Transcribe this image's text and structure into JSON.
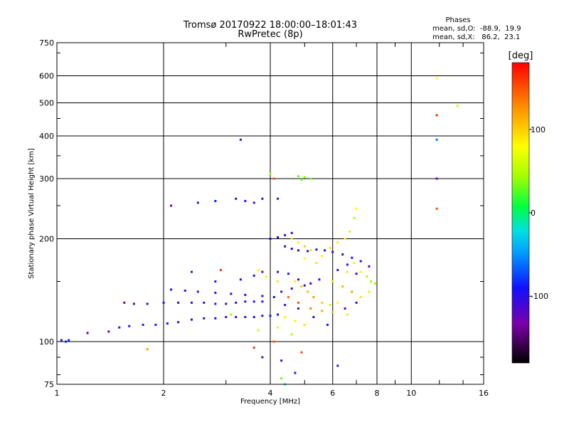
{
  "chart_data": {
    "type": "scatter",
    "title": "Tromsø 20170922 18:00:00–18:01:43",
    "subtitle": "RwPretec (8p)",
    "xlabel": "Frequency [MHz]",
    "ylabel": "Stationary phase Virtual Height [km]",
    "x_scale": "log",
    "y_scale": "log",
    "xlim": [
      1,
      16
    ],
    "ylim": [
      75,
      750
    ],
    "x_ticks": [
      1,
      2,
      4,
      6,
      8,
      10,
      16
    ],
    "x_tick_labels": [
      "1",
      "2",
      "4",
      "6",
      "8",
      "10",
      "16"
    ],
    "y_ticks": [
      75,
      100,
      200,
      300,
      400,
      500,
      600,
      750
    ],
    "y_tick_labels": [
      "75",
      "100",
      "200",
      "300",
      "400",
      "500",
      "600",
      "750"
    ],
    "grid": true,
    "phases_header": "Phases",
    "phase_stats": [
      "mean, sd,O:  -88.9,  19.9",
      "mean, sd,X:   86.2,  23.1"
    ],
    "colorbar": {
      "label": "[deg]",
      "min": -180,
      "max": 180,
      "ticks": [
        100,
        0,
        -100
      ],
      "tick_labels": [
        "100",
        "0",
        "-100"
      ]
    },
    "series": [
      {
        "values": [
          {
            "x": 1.03,
            "y": 101,
            "phase": -110
          },
          {
            "x": 1.06,
            "y": 100,
            "phase": -90
          },
          {
            "x": 1.08,
            "y": 101,
            "phase": -80
          },
          {
            "x": 1.22,
            "y": 106,
            "phase": -120
          },
          {
            "x": 1.4,
            "y": 107,
            "phase": -115
          },
          {
            "x": 1.5,
            "y": 110,
            "phase": -110
          },
          {
            "x": 1.6,
            "y": 111,
            "phase": -105
          },
          {
            "x": 1.75,
            "y": 112,
            "phase": -110
          },
          {
            "x": 1.9,
            "y": 112,
            "phase": -105
          },
          {
            "x": 2.05,
            "y": 113,
            "phase": -100
          },
          {
            "x": 2.2,
            "y": 114,
            "phase": -95
          },
          {
            "x": 2.4,
            "y": 116,
            "phase": -100
          },
          {
            "x": 2.6,
            "y": 117,
            "phase": -95
          },
          {
            "x": 2.8,
            "y": 117,
            "phase": -100
          },
          {
            "x": 3.0,
            "y": 118,
            "phase": -105
          },
          {
            "x": 3.2,
            "y": 118,
            "phase": -100
          },
          {
            "x": 3.4,
            "y": 118,
            "phase": -110
          },
          {
            "x": 3.6,
            "y": 118,
            "phase": -100
          },
          {
            "x": 3.8,
            "y": 119,
            "phase": -95
          },
          {
            "x": 4.0,
            "y": 119,
            "phase": -90
          },
          {
            "x": 4.2,
            "y": 120,
            "phase": -100
          },
          {
            "x": 1.55,
            "y": 130,
            "phase": -115
          },
          {
            "x": 1.65,
            "y": 129,
            "phase": -120
          },
          {
            "x": 1.8,
            "y": 129,
            "phase": -110
          },
          {
            "x": 2.0,
            "y": 130,
            "phase": -105
          },
          {
            "x": 2.2,
            "y": 130,
            "phase": -100
          },
          {
            "x": 2.4,
            "y": 130,
            "phase": -105
          },
          {
            "x": 2.6,
            "y": 130,
            "phase": -100
          },
          {
            "x": 2.8,
            "y": 129,
            "phase": -110
          },
          {
            "x": 3.0,
            "y": 129,
            "phase": -105
          },
          {
            "x": 3.2,
            "y": 130,
            "phase": -100
          },
          {
            "x": 3.4,
            "y": 131,
            "phase": -110
          },
          {
            "x": 3.6,
            "y": 131,
            "phase": -105
          },
          {
            "x": 3.8,
            "y": 131,
            "phase": -95
          },
          {
            "x": 2.1,
            "y": 142,
            "phase": -100
          },
          {
            "x": 2.3,
            "y": 141,
            "phase": -110
          },
          {
            "x": 2.5,
            "y": 140,
            "phase": -115
          },
          {
            "x": 2.8,
            "y": 139,
            "phase": -105
          },
          {
            "x": 3.1,
            "y": 138,
            "phase": -110
          },
          {
            "x": 3.4,
            "y": 137,
            "phase": -100
          },
          {
            "x": 3.8,
            "y": 136,
            "phase": -95
          },
          {
            "x": 4.1,
            "y": 135,
            "phase": -90
          },
          {
            "x": 2.4,
            "y": 160,
            "phase": -115
          },
          {
            "x": 2.8,
            "y": 150,
            "phase": -110
          },
          {
            "x": 3.3,
            "y": 152,
            "phase": -105
          },
          {
            "x": 3.6,
            "y": 156,
            "phase": -95
          },
          {
            "x": 3.8,
            "y": 160,
            "phase": -100
          },
          {
            "x": 2.1,
            "y": 250,
            "phase": -120
          },
          {
            "x": 2.5,
            "y": 255,
            "phase": -110
          },
          {
            "x": 2.8,
            "y": 258,
            "phase": -90
          },
          {
            "x": 3.2,
            "y": 262,
            "phase": -105
          },
          {
            "x": 3.4,
            "y": 258,
            "phase": -100
          },
          {
            "x": 3.6,
            "y": 255,
            "phase": -110
          },
          {
            "x": 3.8,
            "y": 262,
            "phase": -100
          },
          {
            "x": 4.2,
            "y": 262,
            "phase": -120
          },
          {
            "x": 4.0,
            "y": 200,
            "phase": -105
          },
          {
            "x": 4.2,
            "y": 202,
            "phase": -110
          },
          {
            "x": 4.4,
            "y": 205,
            "phase": -100
          },
          {
            "x": 4.6,
            "y": 208,
            "phase": -105
          },
          {
            "x": 4.4,
            "y": 190,
            "phase": -100
          },
          {
            "x": 4.6,
            "y": 187,
            "phase": -95
          },
          {
            "x": 4.8,
            "y": 185,
            "phase": -90
          },
          {
            "x": 5.1,
            "y": 184,
            "phase": -100
          },
          {
            "x": 5.4,
            "y": 186,
            "phase": -95
          },
          {
            "x": 5.7,
            "y": 185,
            "phase": -90
          },
          {
            "x": 6.0,
            "y": 183,
            "phase": -100
          },
          {
            "x": 6.4,
            "y": 180,
            "phase": -105
          },
          {
            "x": 6.8,
            "y": 176,
            "phase": -110
          },
          {
            "x": 7.2,
            "y": 172,
            "phase": -110
          },
          {
            "x": 7.6,
            "y": 166,
            "phase": -115
          },
          {
            "x": 4.2,
            "y": 160,
            "phase": -100
          },
          {
            "x": 4.5,
            "y": 158,
            "phase": -105
          },
          {
            "x": 4.8,
            "y": 152,
            "phase": -95
          },
          {
            "x": 5.2,
            "y": 148,
            "phase": -100
          },
          {
            "x": 4.3,
            "y": 140,
            "phase": -110
          },
          {
            "x": 4.6,
            "y": 143,
            "phase": -115
          },
          {
            "x": 5.0,
            "y": 146,
            "phase": -105
          },
          {
            "x": 5.5,
            "y": 152,
            "phase": -100
          },
          {
            "x": 6.2,
            "y": 162,
            "phase": -110
          },
          {
            "x": 6.6,
            "y": 168,
            "phase": -100
          },
          {
            "x": 7.0,
            "y": 158,
            "phase": -105
          },
          {
            "x": 4.4,
            "y": 128,
            "phase": -100
          },
          {
            "x": 4.8,
            "y": 125,
            "phase": -105
          },
          {
            "x": 5.3,
            "y": 118,
            "phase": -100
          },
          {
            "x": 5.8,
            "y": 112,
            "phase": -95
          },
          {
            "x": 6.5,
            "y": 125,
            "phase": -100
          },
          {
            "x": 7.0,
            "y": 130,
            "phase": -110
          },
          {
            "x": 3.8,
            "y": 90,
            "phase": -110
          },
          {
            "x": 4.3,
            "y": 88,
            "phase": -100
          },
          {
            "x": 4.7,
            "y": 81,
            "phase": -105
          },
          {
            "x": 6.2,
            "y": 85,
            "phase": -110
          },
          {
            "x": 3.3,
            "y": 390,
            "phase": -110
          },
          {
            "x": 11.8,
            "y": 300,
            "phase": -120
          },
          {
            "x": 11.8,
            "y": 390,
            "phase": -60
          },
          {
            "x": 4.0,
            "y": 310,
            "phase": 40
          },
          {
            "x": 4.1,
            "y": 300,
            "phase": 150
          },
          {
            "x": 4.8,
            "y": 305,
            "phase": 30
          },
          {
            "x": 4.9,
            "y": 298,
            "phase": 20
          },
          {
            "x": 5.0,
            "y": 303,
            "phase": 40
          },
          {
            "x": 5.2,
            "y": 300,
            "phase": 30
          },
          {
            "x": 4.6,
            "y": 200,
            "phase": 90
          },
          {
            "x": 4.8,
            "y": 195,
            "phase": 85
          },
          {
            "x": 5.0,
            "y": 190,
            "phase": 100
          },
          {
            "x": 5.2,
            "y": 185,
            "phase": 95
          },
          {
            "x": 5.0,
            "y": 175,
            "phase": 80
          },
          {
            "x": 5.4,
            "y": 170,
            "phase": 90
          },
          {
            "x": 5.6,
            "y": 178,
            "phase": 85
          },
          {
            "x": 5.9,
            "y": 188,
            "phase": 95
          },
          {
            "x": 6.2,
            "y": 195,
            "phase": 90
          },
          {
            "x": 6.5,
            "y": 200,
            "phase": 80
          },
          {
            "x": 6.7,
            "y": 210,
            "phase": 60
          },
          {
            "x": 6.9,
            "y": 230,
            "phase": 50
          },
          {
            "x": 7.0,
            "y": 245,
            "phase": 80
          },
          {
            "x": 6.6,
            "y": 160,
            "phase": 90
          },
          {
            "x": 6.9,
            "y": 170,
            "phase": 70
          },
          {
            "x": 7.2,
            "y": 160,
            "phase": 80
          },
          {
            "x": 7.5,
            "y": 155,
            "phase": 50
          },
          {
            "x": 7.7,
            "y": 150,
            "phase": 40
          },
          {
            "x": 7.9,
            "y": 148,
            "phase": 45
          },
          {
            "x": 7.6,
            "y": 140,
            "phase": 60
          },
          {
            "x": 4.7,
            "y": 150,
            "phase": 85
          },
          {
            "x": 4.9,
            "y": 145,
            "phase": 100
          },
          {
            "x": 5.1,
            "y": 140,
            "phase": 110
          },
          {
            "x": 5.3,
            "y": 135,
            "phase": 120
          },
          {
            "x": 5.6,
            "y": 130,
            "phase": 100
          },
          {
            "x": 5.9,
            "y": 128,
            "phase": 90
          },
          {
            "x": 6.2,
            "y": 130,
            "phase": 80
          },
          {
            "x": 6.0,
            "y": 150,
            "phase": 90
          },
          {
            "x": 6.4,
            "y": 145,
            "phase": 110
          },
          {
            "x": 6.8,
            "y": 140,
            "phase": 120
          },
          {
            "x": 7.2,
            "y": 135,
            "phase": 90
          },
          {
            "x": 4.5,
            "y": 135,
            "phase": 140
          },
          {
            "x": 4.8,
            "y": 130,
            "phase": 150
          },
          {
            "x": 5.2,
            "y": 125,
            "phase": 130
          },
          {
            "x": 5.6,
            "y": 123,
            "phase": 115
          },
          {
            "x": 6.0,
            "y": 122,
            "phase": 105
          },
          {
            "x": 6.6,
            "y": 120,
            "phase": 90
          },
          {
            "x": 4.4,
            "y": 118,
            "phase": 85
          },
          {
            "x": 4.7,
            "y": 115,
            "phase": 75
          },
          {
            "x": 5.0,
            "y": 112,
            "phase": 90
          },
          {
            "x": 4.2,
            "y": 110,
            "phase": 70
          },
          {
            "x": 3.7,
            "y": 108,
            "phase": 60
          },
          {
            "x": 4.1,
            "y": 100,
            "phase": 150
          },
          {
            "x": 3.6,
            "y": 96,
            "phase": 160
          },
          {
            "x": 4.6,
            "y": 105,
            "phase": 50
          },
          {
            "x": 4.4,
            "y": 75,
            "phase": -20
          },
          {
            "x": 4.3,
            "y": 78,
            "phase": 30
          },
          {
            "x": 4.9,
            "y": 93,
            "phase": 150
          },
          {
            "x": 3.7,
            "y": 162,
            "phase": 80
          },
          {
            "x": 3.9,
            "y": 155,
            "phase": 70
          },
          {
            "x": 4.2,
            "y": 150,
            "phase": 90
          },
          {
            "x": 1.8,
            "y": 95,
            "phase": 120
          },
          {
            "x": 2.9,
            "y": 162,
            "phase": 160
          },
          {
            "x": 3.1,
            "y": 120,
            "phase": 40
          },
          {
            "x": 11.8,
            "y": 590,
            "phase": 80
          },
          {
            "x": 11.8,
            "y": 460,
            "phase": 160
          },
          {
            "x": 11.8,
            "y": 245,
            "phase": 150
          },
          {
            "x": 13.5,
            "y": 490,
            "phase": 60
          }
        ]
      }
    ]
  }
}
